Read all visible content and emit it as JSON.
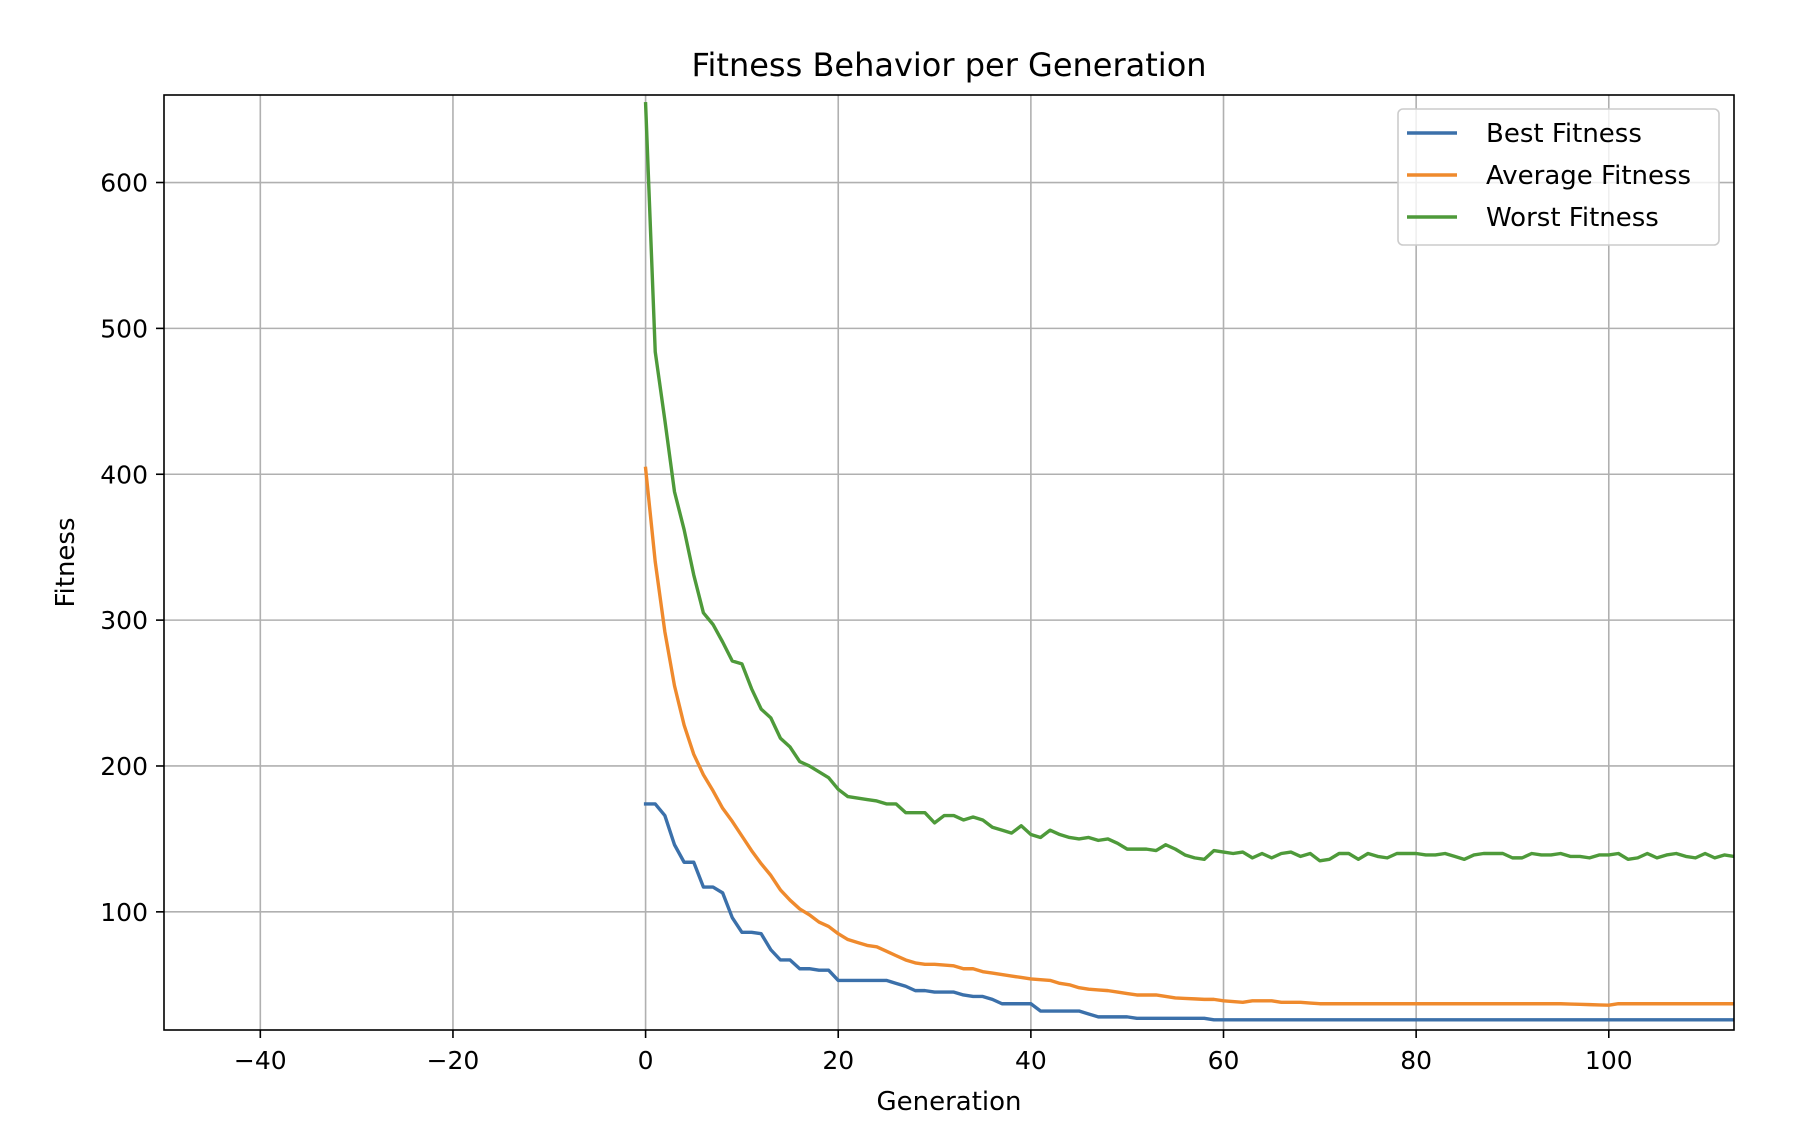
{
  "chart_data": {
    "type": "line",
    "title": "Fitness Behavior per Generation",
    "xlabel": "Generation",
    "ylabel": "Fitness",
    "xlim": [
      -50,
      113
    ],
    "ylim": [
      19,
      660
    ],
    "xticks": [
      -40,
      -20,
      0,
      20,
      40,
      60,
      80,
      100
    ],
    "yticks": [
      100,
      200,
      300,
      400,
      500,
      600
    ],
    "grid": true,
    "legend_position": "top-right",
    "colors": {
      "best": "#3b70aa",
      "average": "#ef8a2d",
      "worst": "#4e9a3a"
    },
    "series": [
      {
        "name": "Best Fitness",
        "color": "#3b70aa",
        "keypoints": [
          [
            0,
            174
          ],
          [
            1,
            174
          ],
          [
            2,
            166
          ],
          [
            3,
            146
          ],
          [
            4,
            134
          ],
          [
            5,
            134
          ],
          [
            6,
            117
          ],
          [
            7,
            117
          ],
          [
            8,
            113
          ],
          [
            9,
            96
          ],
          [
            10,
            86
          ],
          [
            11,
            86
          ],
          [
            12,
            85
          ],
          [
            13,
            74
          ],
          [
            14,
            67
          ],
          [
            15,
            67
          ],
          [
            16,
            61
          ],
          [
            17,
            61
          ],
          [
            18,
            60
          ],
          [
            19,
            60
          ],
          [
            20,
            53
          ],
          [
            25,
            53
          ],
          [
            26,
            51
          ],
          [
            27,
            49
          ],
          [
            28,
            46
          ],
          [
            29,
            46
          ],
          [
            30,
            45
          ],
          [
            32,
            45
          ],
          [
            33,
            43
          ],
          [
            34,
            42
          ],
          [
            35,
            42
          ],
          [
            36,
            40
          ],
          [
            37,
            37
          ],
          [
            40,
            37
          ],
          [
            41,
            32
          ],
          [
            45,
            32
          ],
          [
            46,
            30
          ],
          [
            47,
            28
          ],
          [
            50,
            28
          ],
          [
            51,
            27
          ],
          [
            57,
            27
          ],
          [
            58,
            27
          ],
          [
            59,
            26
          ],
          [
            113,
            26
          ]
        ]
      },
      {
        "name": "Average Fitness",
        "color": "#ef8a2d",
        "keypoints": [
          [
            0,
            404
          ],
          [
            1,
            340
          ],
          [
            2,
            292
          ],
          [
            3,
            255
          ],
          [
            4,
            228
          ],
          [
            5,
            208
          ],
          [
            6,
            194
          ],
          [
            7,
            183
          ],
          [
            8,
            171
          ],
          [
            9,
            162
          ],
          [
            10,
            152
          ],
          [
            11,
            142
          ],
          [
            12,
            133
          ],
          [
            13,
            125
          ],
          [
            14,
            115
          ],
          [
            15,
            108
          ],
          [
            16,
            102
          ],
          [
            17,
            98
          ],
          [
            18,
            93
          ],
          [
            19,
            90
          ],
          [
            20,
            85
          ],
          [
            21,
            81
          ],
          [
            22,
            79
          ],
          [
            23,
            77
          ],
          [
            24,
            76
          ],
          [
            25,
            73
          ],
          [
            26,
            70
          ],
          [
            27,
            67
          ],
          [
            28,
            65
          ],
          [
            29,
            64
          ],
          [
            30,
            64
          ],
          [
            32,
            63
          ],
          [
            33,
            61
          ],
          [
            34,
            61
          ],
          [
            35,
            59
          ],
          [
            37,
            57
          ],
          [
            38,
            56
          ],
          [
            39,
            55
          ],
          [
            40,
            54
          ],
          [
            42,
            53
          ],
          [
            43,
            51
          ],
          [
            44,
            50
          ],
          [
            45,
            48
          ],
          [
            46,
            47
          ],
          [
            48,
            46
          ],
          [
            49,
            45
          ],
          [
            50,
            44
          ],
          [
            51,
            43
          ],
          [
            53,
            43
          ],
          [
            54,
            42
          ],
          [
            55,
            41
          ],
          [
            58,
            40
          ],
          [
            59,
            40
          ],
          [
            60,
            39
          ],
          [
            62,
            38
          ],
          [
            63,
            39
          ],
          [
            65,
            39
          ],
          [
            66,
            38
          ],
          [
            68,
            38
          ],
          [
            70,
            37
          ],
          [
            75,
            37
          ],
          [
            80,
            37
          ],
          [
            85,
            37
          ],
          [
            90,
            37
          ],
          [
            95,
            37
          ],
          [
            100,
            36
          ],
          [
            101,
            37
          ],
          [
            105,
            37
          ],
          [
            110,
            37
          ],
          [
            113,
            37
          ]
        ]
      },
      {
        "name": "Worst Fitness",
        "color": "#4e9a3a",
        "keypoints": [
          [
            0,
            654
          ],
          [
            1,
            484
          ],
          [
            2,
            437
          ],
          [
            3,
            388
          ],
          [
            4,
            362
          ],
          [
            5,
            331
          ],
          [
            6,
            305
          ],
          [
            7,
            297
          ],
          [
            8,
            285
          ],
          [
            9,
            272
          ],
          [
            10,
            270
          ],
          [
            11,
            253
          ],
          [
            12,
            239
          ],
          [
            13,
            233
          ],
          [
            14,
            219
          ],
          [
            15,
            213
          ],
          [
            16,
            203
          ],
          [
            17,
            200
          ],
          [
            18,
            196
          ],
          [
            19,
            192
          ],
          [
            20,
            184
          ],
          [
            21,
            179
          ],
          [
            22,
            178
          ],
          [
            23,
            177
          ],
          [
            24,
            176
          ],
          [
            25,
            174
          ],
          [
            26,
            174
          ],
          [
            27,
            168
          ],
          [
            28,
            168
          ],
          [
            29,
            168
          ],
          [
            30,
            161
          ],
          [
            31,
            166
          ],
          [
            32,
            166
          ],
          [
            33,
            163
          ],
          [
            34,
            165
          ],
          [
            35,
            163
          ],
          [
            36,
            158
          ],
          [
            37,
            156
          ],
          [
            38,
            154
          ],
          [
            39,
            159
          ],
          [
            40,
            153
          ],
          [
            41,
            151
          ],
          [
            42,
            156
          ],
          [
            43,
            153
          ],
          [
            44,
            151
          ],
          [
            45,
            150
          ],
          [
            46,
            151
          ],
          [
            47,
            149
          ],
          [
            48,
            150
          ],
          [
            49,
            147
          ],
          [
            50,
            143
          ],
          [
            51,
            143
          ],
          [
            52,
            143
          ],
          [
            53,
            142
          ],
          [
            54,
            146
          ],
          [
            55,
            143
          ],
          [
            56,
            139
          ],
          [
            57,
            137
          ],
          [
            58,
            136
          ],
          [
            59,
            142
          ],
          [
            60,
            141
          ],
          [
            61,
            140
          ],
          [
            62,
            141
          ],
          [
            63,
            137
          ],
          [
            64,
            140
          ],
          [
            65,
            137
          ],
          [
            66,
            140
          ],
          [
            67,
            141
          ],
          [
            68,
            138
          ],
          [
            69,
            140
          ],
          [
            70,
            135
          ],
          [
            71,
            136
          ],
          [
            72,
            140
          ],
          [
            73,
            140
          ],
          [
            74,
            136
          ],
          [
            75,
            140
          ],
          [
            76,
            138
          ],
          [
            77,
            137
          ],
          [
            78,
            140
          ],
          [
            79,
            140
          ],
          [
            80,
            140
          ],
          [
            81,
            139
          ],
          [
            82,
            139
          ],
          [
            83,
            140
          ],
          [
            84,
            138
          ],
          [
            85,
            136
          ],
          [
            86,
            139
          ],
          [
            87,
            140
          ],
          [
            88,
            140
          ],
          [
            89,
            140
          ],
          [
            90,
            137
          ],
          [
            91,
            137
          ],
          [
            92,
            140
          ],
          [
            93,
            139
          ],
          [
            94,
            139
          ],
          [
            95,
            140
          ],
          [
            96,
            138
          ],
          [
            97,
            138
          ],
          [
            98,
            137
          ],
          [
            99,
            139
          ],
          [
            100,
            139
          ],
          [
            101,
            140
          ],
          [
            102,
            136
          ],
          [
            103,
            137
          ],
          [
            104,
            140
          ],
          [
            105,
            137
          ],
          [
            106,
            139
          ],
          [
            107,
            140
          ],
          [
            108,
            138
          ],
          [
            109,
            137
          ],
          [
            110,
            140
          ],
          [
            111,
            137
          ],
          [
            112,
            139
          ],
          [
            113,
            138
          ]
        ]
      }
    ]
  }
}
